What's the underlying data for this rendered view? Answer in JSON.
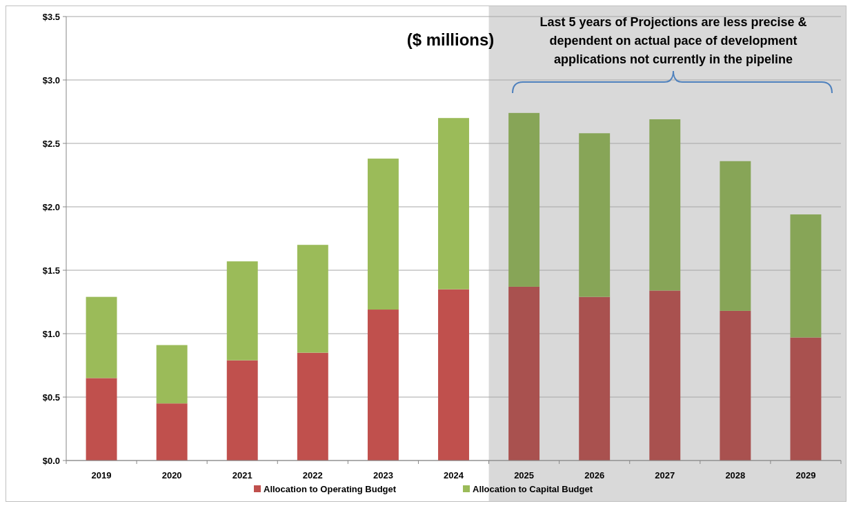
{
  "chart_data": {
    "type": "bar",
    "stacked": true,
    "categories": [
      "2019",
      "2020",
      "2021",
      "2022",
      "2023",
      "2024",
      "2025",
      "2026",
      "2027",
      "2028",
      "2029"
    ],
    "series": [
      {
        "name": "Allocation to Operating Budget",
        "color": "#c0504d",
        "colors": [
          "#c0504d",
          "#c0504d",
          "#c0504d",
          "#c0504d",
          "#c0504d",
          "#c0504d",
          "#a9514f",
          "#a9514f",
          "#a9514f",
          "#a9514f",
          "#a9514f"
        ],
        "values": [
          0.65,
          0.45,
          0.79,
          0.85,
          1.19,
          1.35,
          1.37,
          1.29,
          1.34,
          1.18,
          0.97
        ]
      },
      {
        "name": "Allocation to Capital Budget",
        "color": "#9bbb59",
        "colors": [
          "#9bbb59",
          "#9bbb59",
          "#9bbb59",
          "#9bbb59",
          "#9bbb59",
          "#9bbb59",
          "#87a557",
          "#87a557",
          "#87a557",
          "#87a557",
          "#87a557"
        ],
        "values": [
          0.64,
          0.46,
          0.78,
          0.85,
          1.19,
          1.35,
          1.37,
          1.29,
          1.35,
          1.18,
          0.97
        ]
      }
    ],
    "ylim": [
      0,
      3.5
    ],
    "yticks": [
      {
        "value": 0,
        "label": "$0.0"
      },
      {
        "value": 0.5,
        "label": "$0.5"
      },
      {
        "value": 1,
        "label": "$1.0"
      },
      {
        "value": 1.5,
        "label": "$1.5"
      },
      {
        "value": 2,
        "label": "$2.0"
      },
      {
        "value": 2.5,
        "label": "$2.5"
      },
      {
        "value": 3,
        "label": "$3.0"
      },
      {
        "value": 3.5,
        "label": "$3.5"
      }
    ],
    "grid": "y",
    "legend": "bottom",
    "bands": [
      {
        "axis": "x",
        "from": "2025",
        "to": "2029",
        "color": "#d9d9d9"
      }
    ],
    "annotations": [
      "($ millions)",
      "Last 5 years of Projections are less precise &\ndependent on actual pace of development\napplications not currently in the pipeline"
    ]
  }
}
